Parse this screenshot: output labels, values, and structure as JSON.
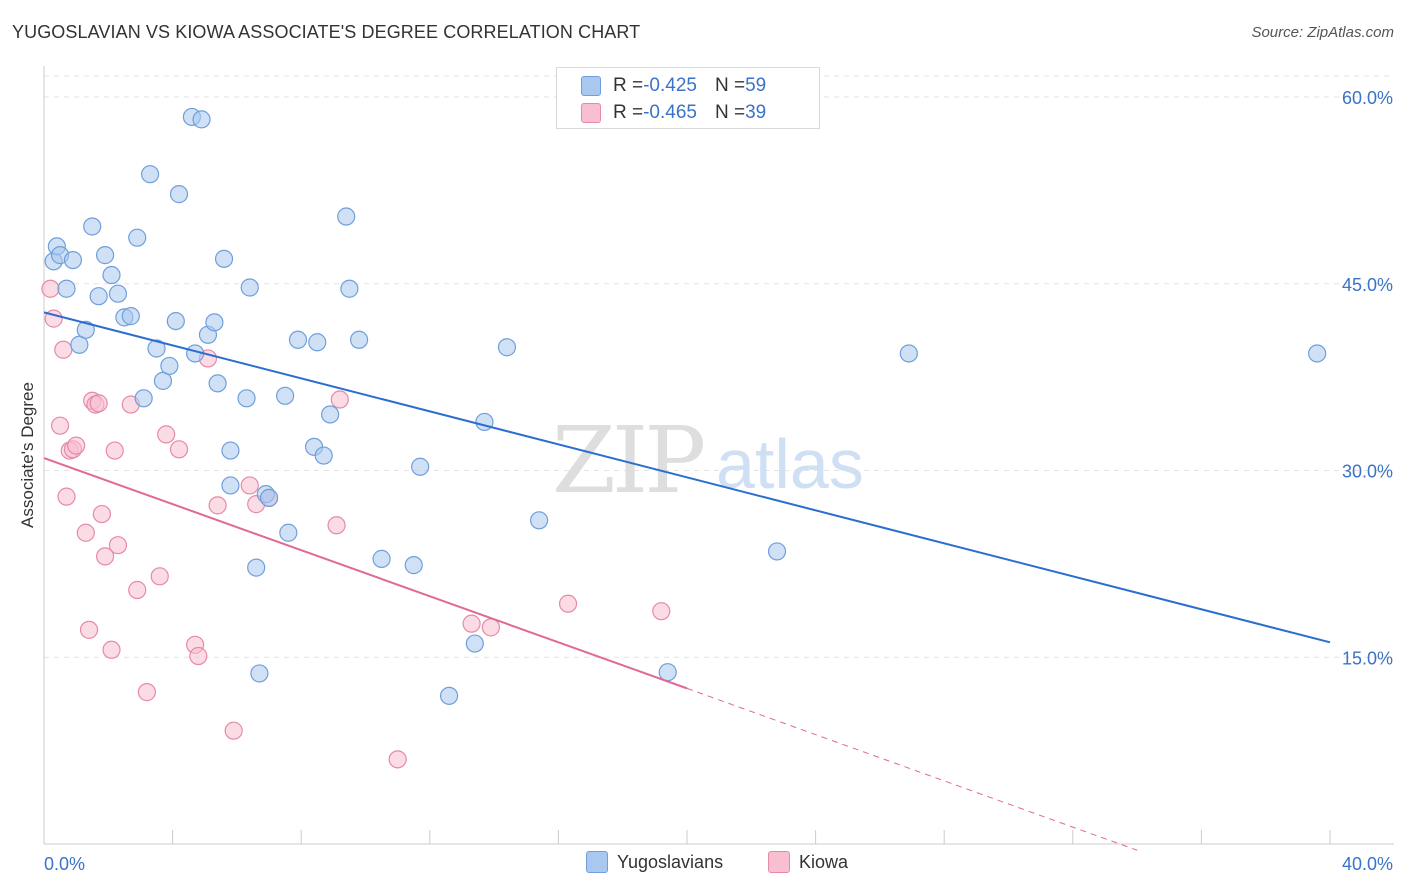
{
  "header": {
    "title": "YUGOSLAVIAN VS KIOWA ASSOCIATE'S DEGREE CORRELATION CHART",
    "source": "Source: ZipAtlas.com"
  },
  "watermark": {
    "zip": "ZIP",
    "atlas": "atlas"
  },
  "stats": {
    "yugoslavians": {
      "r_label": "R = ",
      "r_value": "-0.425",
      "n_label": "N = ",
      "n_value": "59"
    },
    "kiowa": {
      "r_label": "R = ",
      "r_value": "-0.465",
      "n_label": "N = ",
      "n_value": "39"
    }
  },
  "legend": {
    "yugoslavians": "Yugoslavians",
    "kiowa": "Kiowa"
  },
  "colors": {
    "blue_fill": "#a9c8ef",
    "blue_stroke": "#6f9fdb",
    "blue_line": "#2c6dd0",
    "pink_fill": "#f7bfd0",
    "pink_stroke": "#e58aa8",
    "pink_line": "#e06a92",
    "axis_text": "#3a73c8",
    "grid": "#e3e3e3"
  },
  "chart_data": {
    "type": "scatter",
    "title": "YUGOSLAVIAN VS KIOWA ASSOCIATE'S DEGREE CORRELATION CHART",
    "xlabel": "",
    "ylabel": "Associate's Degree",
    "xlim": [
      0,
      40
    ],
    "ylim": [
      0,
      62
    ],
    "x_tick_labels": [
      "0.0%",
      "40.0%"
    ],
    "y_ticks": [
      15,
      30,
      45,
      60
    ],
    "y_tick_labels": [
      "15.0%",
      "30.0%",
      "45.0%",
      "60.0%"
    ],
    "grid": true,
    "legend_position": "bottom-center",
    "series": [
      {
        "name": "Yugoslavians",
        "r": -0.425,
        "n": 59,
        "trend": {
          "x0": 0,
          "y0": 42.7,
          "x1": 40,
          "y1": 16.2
        },
        "points": [
          [
            0.3,
            46.8
          ],
          [
            0.4,
            48.0
          ],
          [
            0.5,
            47.3
          ],
          [
            0.7,
            44.6
          ],
          [
            0.9,
            46.9
          ],
          [
            1.1,
            40.1
          ],
          [
            1.3,
            41.3
          ],
          [
            1.5,
            49.6
          ],
          [
            1.7,
            44.0
          ],
          [
            1.9,
            47.3
          ],
          [
            2.1,
            45.7
          ],
          [
            2.3,
            44.2
          ],
          [
            2.5,
            42.3
          ],
          [
            2.7,
            42.4
          ],
          [
            2.9,
            48.7
          ],
          [
            3.1,
            35.8
          ],
          [
            3.3,
            53.8
          ],
          [
            3.5,
            39.8
          ],
          [
            3.7,
            37.2
          ],
          [
            3.9,
            38.4
          ],
          [
            4.1,
            42.0
          ],
          [
            4.2,
            52.2
          ],
          [
            4.6,
            58.4
          ],
          [
            4.7,
            39.4
          ],
          [
            4.9,
            58.2
          ],
          [
            5.1,
            40.9
          ],
          [
            5.3,
            41.9
          ],
          [
            5.4,
            37.0
          ],
          [
            5.6,
            47.0
          ],
          [
            5.8,
            31.6
          ],
          [
            5.8,
            28.8
          ],
          [
            6.3,
            35.8
          ],
          [
            6.4,
            44.7
          ],
          [
            6.6,
            22.2
          ],
          [
            6.9,
            28.1
          ],
          [
            7.0,
            27.8
          ],
          [
            7.5,
            36.0
          ],
          [
            7.6,
            25.0
          ],
          [
            7.9,
            40.5
          ],
          [
            8.4,
            31.9
          ],
          [
            8.5,
            40.3
          ],
          [
            8.7,
            31.2
          ],
          [
            8.9,
            34.5
          ],
          [
            9.4,
            50.4
          ],
          [
            9.5,
            44.6
          ],
          [
            9.8,
            40.5
          ],
          [
            10.5,
            22.9
          ],
          [
            11.5,
            22.4
          ],
          [
            11.7,
            30.3
          ],
          [
            12.6,
            11.9
          ],
          [
            13.4,
            16.1
          ],
          [
            13.7,
            33.9
          ],
          [
            14.4,
            39.9
          ],
          [
            15.4,
            26.0
          ],
          [
            19.4,
            13.8
          ],
          [
            22.8,
            23.5
          ],
          [
            26.9,
            39.4
          ],
          [
            39.6,
            39.4
          ],
          [
            6.7,
            13.7
          ]
        ]
      },
      {
        "name": "Kiowa",
        "r": -0.465,
        "n": 39,
        "trend": {
          "x0": 0,
          "y0": 31.0,
          "x1": 20,
          "y1": 12.5,
          "dash_x1": 34,
          "dash_y1": -0.5
        },
        "points": [
          [
            0.2,
            44.6
          ],
          [
            0.3,
            42.2
          ],
          [
            0.5,
            33.6
          ],
          [
            0.6,
            39.7
          ],
          [
            0.7,
            27.9
          ],
          [
            0.8,
            31.6
          ],
          [
            0.9,
            31.7
          ],
          [
            1.0,
            32.0
          ],
          [
            1.3,
            25.0
          ],
          [
            1.4,
            17.2
          ],
          [
            1.5,
            35.6
          ],
          [
            1.6,
            35.3
          ],
          [
            1.7,
            35.4
          ],
          [
            1.8,
            26.5
          ],
          [
            1.9,
            23.1
          ],
          [
            2.1,
            15.6
          ],
          [
            2.2,
            31.6
          ],
          [
            2.3,
            24.0
          ],
          [
            2.7,
            35.3
          ],
          [
            2.9,
            20.4
          ],
          [
            3.2,
            12.2
          ],
          [
            3.6,
            21.5
          ],
          [
            3.8,
            32.9
          ],
          [
            4.2,
            31.7
          ],
          [
            4.7,
            16.0
          ],
          [
            4.8,
            15.1
          ],
          [
            5.1,
            39.0
          ],
          [
            5.4,
            27.2
          ],
          [
            5.9,
            9.1
          ],
          [
            6.4,
            28.8
          ],
          [
            6.6,
            27.3
          ],
          [
            7.0,
            27.8
          ],
          [
            9.1,
            25.6
          ],
          [
            9.2,
            35.7
          ],
          [
            11.0,
            6.8
          ],
          [
            13.3,
            17.7
          ],
          [
            13.9,
            17.4
          ],
          [
            16.3,
            19.3
          ],
          [
            19.2,
            18.7
          ]
        ]
      }
    ]
  }
}
